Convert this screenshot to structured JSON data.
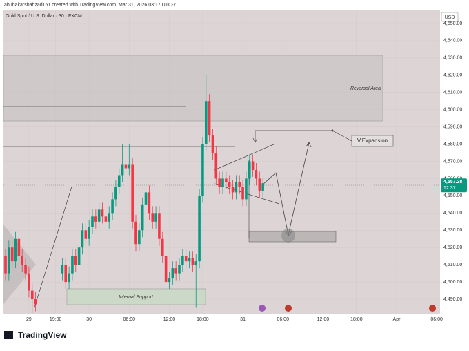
{
  "header": {
    "credit": "abubakarshahzad161 created with TradingView.com, Mar 31, 2026 03:17 UTC-7"
  },
  "chart_data": {
    "type": "candlestick",
    "title": "Gold Spot / U.S. Dollar · 30 · FXCM",
    "currency": "USD",
    "up_color": "#089981",
    "down_color": "#f23645",
    "x": [
      0,
      1,
      2,
      3,
      4,
      5,
      6,
      7,
      8,
      9,
      17,
      18,
      19,
      20,
      21,
      22,
      23,
      24,
      25,
      26,
      27,
      28,
      29,
      30,
      31,
      32,
      33,
      34,
      35,
      36,
      37,
      38,
      39,
      40,
      41,
      42,
      43,
      44,
      45,
      46,
      47,
      48,
      49,
      50,
      51,
      52,
      53,
      54,
      55,
      56,
      57,
      58,
      59,
      60,
      61,
      62,
      63,
      64,
      65,
      66,
      67,
      68,
      69,
      70,
      71,
      72,
      73,
      74,
      75,
      76,
      77
    ],
    "open": [
      4515,
      4505,
      4520,
      4512,
      4525,
      4515,
      4510,
      4505,
      4495,
      4490,
      4505,
      4510,
      4500,
      4505,
      4515,
      4510,
      4520,
      4530,
      4525,
      4532,
      4538,
      4535,
      4542,
      4538,
      4535,
      4540,
      4548,
      4555,
      4562,
      4568,
      4566,
      4568,
      4535,
      4522,
      4530,
      4545,
      4552,
      4540,
      4535,
      4540,
      4525,
      4515,
      4500,
      4502,
      4508,
      4505,
      4510,
      4515,
      4512,
      4514,
      4510,
      4512,
      4550,
      4580,
      4605,
      4585,
      4575,
      4560,
      4555,
      4560,
      4558,
      4555,
      4552,
      4558,
      4555,
      4548,
      4560,
      4570,
      4565,
      4560,
      4553
    ],
    "high": [
      4519,
      4524,
      4524,
      4529,
      4529,
      4519,
      4514,
      4509,
      4499,
      4494,
      4514,
      4514,
      4509,
      4519,
      4519,
      4524,
      4534,
      4534,
      4536,
      4542,
      4542,
      4546,
      4546,
      4542,
      4544,
      4552,
      4559,
      4566,
      4580,
      4572,
      4580,
      4572,
      4539,
      4534,
      4549,
      4556,
      4556,
      4544,
      4544,
      4544,
      4529,
      4519,
      4506,
      4512,
      4512,
      4514,
      4519,
      4519,
      4518,
      4518,
      4516,
      4554,
      4584,
      4620,
      4609,
      4589,
      4579,
      4564,
      4564,
      4564,
      4562,
      4559,
      4562,
      4562,
      4559,
      4564,
      4574,
      4574,
      4569,
      4564,
      4560
    ],
    "low": [
      4501,
      4501,
      4508,
      4508,
      4511,
      4506,
      4501,
      4491,
      4482,
      4483,
      4501,
      4496,
      4496,
      4501,
      4506,
      4506,
      4516,
      4521,
      4521,
      4528,
      4531,
      4531,
      4534,
      4531,
      4531,
      4536,
      4544,
      4551,
      4558,
      4562,
      4562,
      4531,
      4518,
      4518,
      4526,
      4541,
      4536,
      4531,
      4531,
      4521,
      4511,
      4496,
      4496,
      4498,
      4501,
      4501,
      4506,
      4508,
      4508,
      4506,
      4485,
      4508,
      4546,
      4576,
      4581,
      4571,
      4556,
      4551,
      4551,
      4554,
      4551,
      4548,
      4548,
      4551,
      4544,
      4544,
      4556,
      4561,
      4556,
      4549,
      4549
    ],
    "close": [
      4505,
      4520,
      4512,
      4525,
      4515,
      4510,
      4505,
      4495,
      4490,
      4487,
      4510,
      4500,
      4505,
      4515,
      4510,
      4520,
      4530,
      4525,
      4532,
      4538,
      4535,
      4542,
      4538,
      4535,
      4540,
      4548,
      4555,
      4562,
      4568,
      4566,
      4568,
      4535,
      4522,
      4530,
      4545,
      4552,
      4540,
      4535,
      4540,
      4525,
      4515,
      4500,
      4502,
      4508,
      4505,
      4510,
      4515,
      4512,
      4514,
      4510,
      4512,
      4550,
      4580,
      4605,
      4585,
      4575,
      4560,
      4555,
      4560,
      4558,
      4555,
      4552,
      4558,
      4555,
      4548,
      4560,
      4570,
      4565,
      4560,
      4553,
      4557.28
    ],
    "xlim": [
      0,
      130
    ],
    "xticks": [
      {
        "value": 7,
        "label": "29"
      },
      {
        "value": 15,
        "label": "19:00"
      },
      {
        "value": 25,
        "label": "30"
      },
      {
        "value": 37,
        "label": "06:00"
      },
      {
        "value": 49,
        "label": "12:00"
      },
      {
        "value": 59,
        "label": "18:00"
      },
      {
        "value": 71,
        "label": "31"
      },
      {
        "value": 83,
        "label": "06:00"
      },
      {
        "value": 95,
        "label": "12:00"
      },
      {
        "value": 105,
        "label": "18:00"
      },
      {
        "value": 117,
        "label": "Apr"
      },
      {
        "value": 129,
        "label": "06:00"
      }
    ],
    "ylim": [
      4481.2,
      4657.6
    ],
    "yticks": [
      {
        "value": 4490,
        "label": "4,490.00"
      },
      {
        "value": 4500,
        "label": "4,500.00"
      },
      {
        "value": 4510,
        "label": "4,510.00"
      },
      {
        "value": 4520,
        "label": "4,520.00"
      },
      {
        "value": 4530,
        "label": "4,530.00"
      },
      {
        "value": 4540,
        "label": "4,540.00"
      },
      {
        "value": 4550,
        "label": "4,550.00"
      },
      {
        "value": 4560,
        "label": "4,560.00"
      },
      {
        "value": 4570,
        "label": "4,570.00"
      },
      {
        "value": 4580,
        "label": "4,580.00"
      },
      {
        "value": 4590,
        "label": "4,590.00"
      },
      {
        "value": 4600,
        "label": "4,600.00"
      },
      {
        "value": 4610,
        "label": "4,610.00"
      },
      {
        "value": 4620,
        "label": "4,620.00"
      },
      {
        "value": 4630,
        "label": "4,630.00"
      },
      {
        "value": 4640,
        "label": "4,640.00"
      },
      {
        "value": 4650,
        "label": "4,650.00"
      }
    ],
    "grid": true,
    "price_label": {
      "value": 4557.28,
      "label": "4,557.28"
    },
    "countdown": "12:37",
    "annotations": [
      "Reversal Area",
      "V.Expansion",
      "Internal Support"
    ]
  },
  "footer": {
    "brand": "TradingView"
  }
}
